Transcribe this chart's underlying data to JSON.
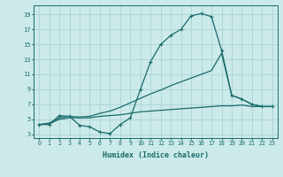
{
  "xlabel": "Humidex (Indice chaleur)",
  "bg_color": "#cceaea",
  "grid_color": "#aad4d4",
  "line_color": "#1a6b6b",
  "xlim": [
    -0.5,
    23.5
  ],
  "ylim": [
    2.5,
    20.2
  ],
  "xticks": [
    0,
    1,
    2,
    3,
    4,
    5,
    6,
    7,
    8,
    9,
    10,
    11,
    12,
    13,
    14,
    15,
    16,
    17,
    18,
    19,
    20,
    21,
    22,
    23
  ],
  "yticks": [
    3,
    5,
    7,
    9,
    11,
    13,
    15,
    17,
    19
  ],
  "curve1_x": [
    0,
    1,
    2,
    3,
    4,
    5,
    6,
    7,
    8,
    9,
    10,
    11,
    12,
    13,
    14,
    15,
    16,
    17,
    18,
    19,
    20,
    21,
    22,
    23
  ],
  "curve1_y": [
    4.3,
    4.3,
    5.5,
    5.4,
    4.2,
    4.0,
    3.3,
    3.1,
    4.3,
    5.2,
    9.0,
    12.7,
    15.0,
    16.2,
    17.0,
    18.8,
    19.1,
    18.7,
    14.2,
    8.2,
    7.7,
    7.0,
    6.7,
    6.7
  ],
  "curve2_x": [
    0,
    1,
    2,
    3,
    4,
    5,
    6,
    7,
    8,
    9,
    10,
    11,
    12,
    13,
    14,
    15,
    16,
    17,
    18,
    19,
    20,
    21,
    22,
    23
  ],
  "curve2_y": [
    4.3,
    4.5,
    5.2,
    5.4,
    5.3,
    5.4,
    5.8,
    6.1,
    6.6,
    7.2,
    7.8,
    8.4,
    8.9,
    9.5,
    10.0,
    10.5,
    11.0,
    11.5,
    13.8,
    8.2,
    7.7,
    7.0,
    6.7,
    6.7
  ],
  "curve3_x": [
    0,
    1,
    2,
    3,
    4,
    5,
    6,
    7,
    8,
    9,
    10,
    11,
    12,
    13,
    14,
    15,
    16,
    17,
    18,
    19,
    20,
    21,
    22,
    23
  ],
  "curve3_y": [
    4.3,
    4.4,
    5.0,
    5.2,
    5.2,
    5.2,
    5.4,
    5.5,
    5.6,
    5.8,
    6.0,
    6.1,
    6.2,
    6.3,
    6.4,
    6.5,
    6.6,
    6.7,
    6.8,
    6.8,
    6.9,
    6.7,
    6.7,
    6.7
  ]
}
